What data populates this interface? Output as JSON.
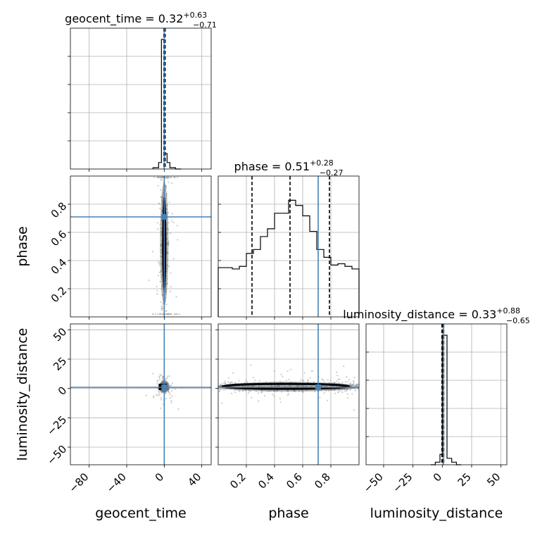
{
  "chart_data": {
    "type": "corner",
    "parameters": [
      "geocent_time",
      "phase",
      "luminosity_distance"
    ],
    "titles": [
      {
        "name": "geocent_time",
        "median": "0.32",
        "plus": "+0.63",
        "minus": "−0.71"
      },
      {
        "name": "phase",
        "median": "0.51",
        "plus": "+0.28",
        "minus": "−0.27"
      },
      {
        "name": "luminosity_distance",
        "median": "0.33",
        "plus": "+0.88",
        "minus": "−0.65"
      }
    ],
    "ranges": {
      "geocent_time": [
        -100,
        50
      ],
      "phase": [
        0,
        1
      ],
      "luminosity_distance": [
        -65,
        55
      ]
    },
    "ticks": {
      "geocent_time": [
        -80,
        -40,
        0,
        40
      ],
      "geocent_time_labels": [
        "−80",
        "−40",
        "0",
        "40"
      ],
      "phase": [
        0.2,
        0.4,
        0.6,
        0.8
      ],
      "phase_labels": [
        "0.2",
        "0.4",
        "0.6",
        "0.8"
      ],
      "luminosity_distance": [
        -50,
        -25,
        0,
        25,
        50
      ],
      "luminosity_distance_labels": [
        "−50",
        "−25",
        "0",
        "25",
        "50"
      ]
    },
    "truths": {
      "geocent_time": 0.0,
      "phase": 0.71,
      "luminosity_distance": 1.0
    },
    "quantiles": {
      "geocent_time": [
        -0.39,
        0.32,
        0.95
      ],
      "phase": [
        0.24,
        0.51,
        0.79
      ],
      "luminosity_distance": [
        -0.32,
        0.33,
        1.21
      ]
    },
    "histograms": {
      "geocent_time": {
        "edges": [
          -12,
          -6,
          -3,
          0,
          3,
          6,
          12,
          18
        ],
        "counts": [
          0.01,
          0.05,
          1.0,
          0.12,
          0.05,
          0.01,
          0.0
        ]
      },
      "phase": {
        "edges": [
          0,
          0.05,
          0.1,
          0.15,
          0.2,
          0.25,
          0.3,
          0.35,
          0.4,
          0.45,
          0.5,
          0.55,
          0.6,
          0.65,
          0.7,
          0.75,
          0.8,
          0.85,
          0.9,
          0.95,
          1.0
        ],
        "counts": [
          0.38,
          0.38,
          0.37,
          0.39,
          0.49,
          0.52,
          0.62,
          0.68,
          0.8,
          0.8,
          0.9,
          0.86,
          0.78,
          0.66,
          0.52,
          0.46,
          0.4,
          0.41,
          0.39,
          0.37
        ]
      },
      "luminosity_distance": {
        "edges": [
          -10,
          -6,
          -2,
          0,
          4,
          8,
          12,
          16
        ],
        "counts": [
          0.0,
          0.02,
          0.08,
          1.0,
          0.05,
          0.02,
          0.0
        ]
      }
    },
    "grid": true,
    "grid_lines": {
      "geocent_time_x": [
        -80,
        -40,
        0,
        40
      ],
      "geocent_time_y_frac": [
        0.2,
        0.4,
        0.6,
        0.8
      ],
      "phase_x": [
        0.2,
        0.4,
        0.6,
        0.8
      ],
      "phase_y_frac": [
        0.2,
        0.4,
        0.6,
        0.8
      ],
      "luminosity_distance_x": [
        -50,
        -25,
        0,
        25,
        50
      ],
      "luminosity_distance_y_frac": [
        0.2,
        0.4,
        0.6,
        0.8
      ]
    }
  }
}
